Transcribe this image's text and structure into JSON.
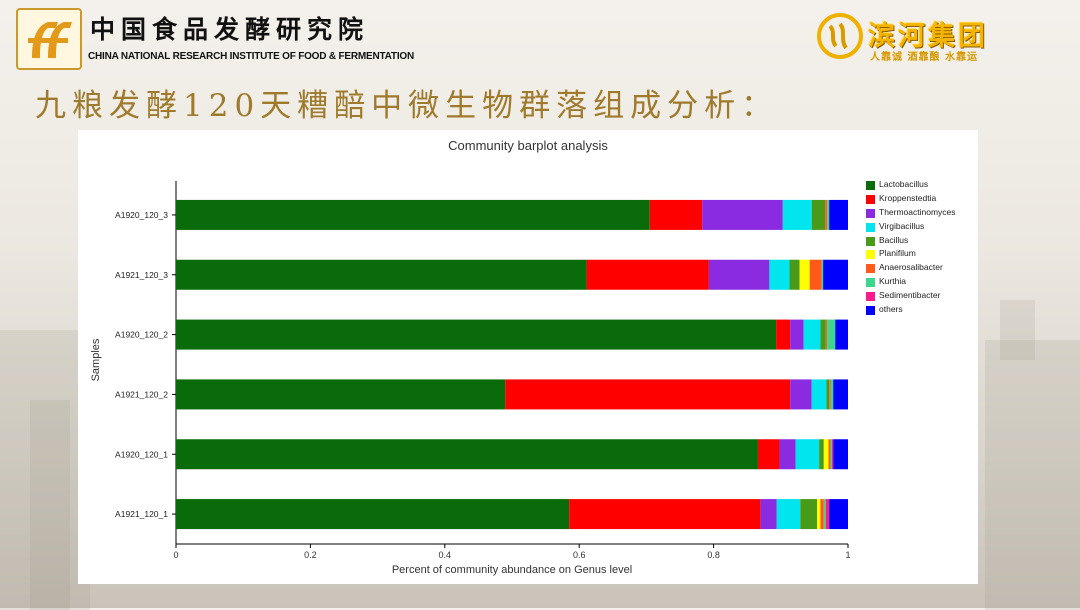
{
  "header": {
    "institute_cn": "中国食品发酵研究院",
    "institute_en": "CHINA NATIONAL RESEARCH INSTITUTE OF FOOD & FERMENTATION",
    "brand_name": "滨河集团",
    "brand_slogan": "人靠诚 酒靠酿 水靠运",
    "logo_icon": "ff-logo-icon",
    "brand_icon": "binhe-logo-icon"
  },
  "slide": {
    "title": "九粮发酵120天糟醅中微生物群落组成分析："
  },
  "chart_data": {
    "type": "bar",
    "orientation": "horizontal",
    "stacked": true,
    "title": "Community barplot analysis",
    "xlabel": "Percent of community abundance on Genus level",
    "ylabel": "Samples",
    "xlim": [
      0,
      1
    ],
    "xticks": [
      "0",
      "0.2",
      "0.4",
      "0.6",
      "0.8",
      "1"
    ],
    "legend_position": "right",
    "categories": [
      "A1920_120_3",
      "A1921_120_3",
      "A1920_120_2",
      "A1921_120_2",
      "A1920_120_1",
      "A1921_120_1"
    ],
    "series": [
      {
        "name": "Lactobacillus",
        "color": "#0a6b0a",
        "values": [
          0.705,
          0.611,
          0.893,
          0.49,
          0.866,
          0.585
        ]
      },
      {
        "name": "Kroppenstedtia",
        "color": "#ff0000",
        "values": [
          0.078,
          0.182,
          0.021,
          0.424,
          0.032,
          0.285
        ]
      },
      {
        "name": "Thermoactinomyces",
        "color": "#8a2be2",
        "values": [
          0.12,
          0.09,
          0.02,
          0.032,
          0.024,
          0.024
        ]
      },
      {
        "name": "Virgibacillus",
        "color": "#00e5ee",
        "values": [
          0.043,
          0.03,
          0.025,
          0.022,
          0.035,
          0.035
        ]
      },
      {
        "name": "Bacillus",
        "color": "#4a9a1a",
        "values": [
          0.02,
          0.015,
          0.008,
          0.004,
          0.007,
          0.025
        ]
      },
      {
        "name": "Planifilum",
        "color": "#ffff00",
        "values": [
          0.0,
          0.015,
          0.0,
          0.0,
          0.007,
          0.005
        ]
      },
      {
        "name": "Anaerosalibacter",
        "color": "#ff5a1a",
        "values": [
          0.003,
          0.018,
          0.002,
          0.002,
          0.003,
          0.005
        ]
      },
      {
        "name": "Kurthia",
        "color": "#3cd68c",
        "values": [
          0.003,
          0.002,
          0.012,
          0.004,
          0.002,
          0.003
        ]
      },
      {
        "name": "Sedimentibacter",
        "color": "#ff1a8c",
        "values": [
          0.0,
          0.0,
          0.0,
          0.0,
          0.002,
          0.005
        ]
      },
      {
        "name": "others",
        "color": "#0000ff",
        "values": [
          0.028,
          0.037,
          0.019,
          0.022,
          0.022,
          0.028
        ]
      }
    ]
  }
}
